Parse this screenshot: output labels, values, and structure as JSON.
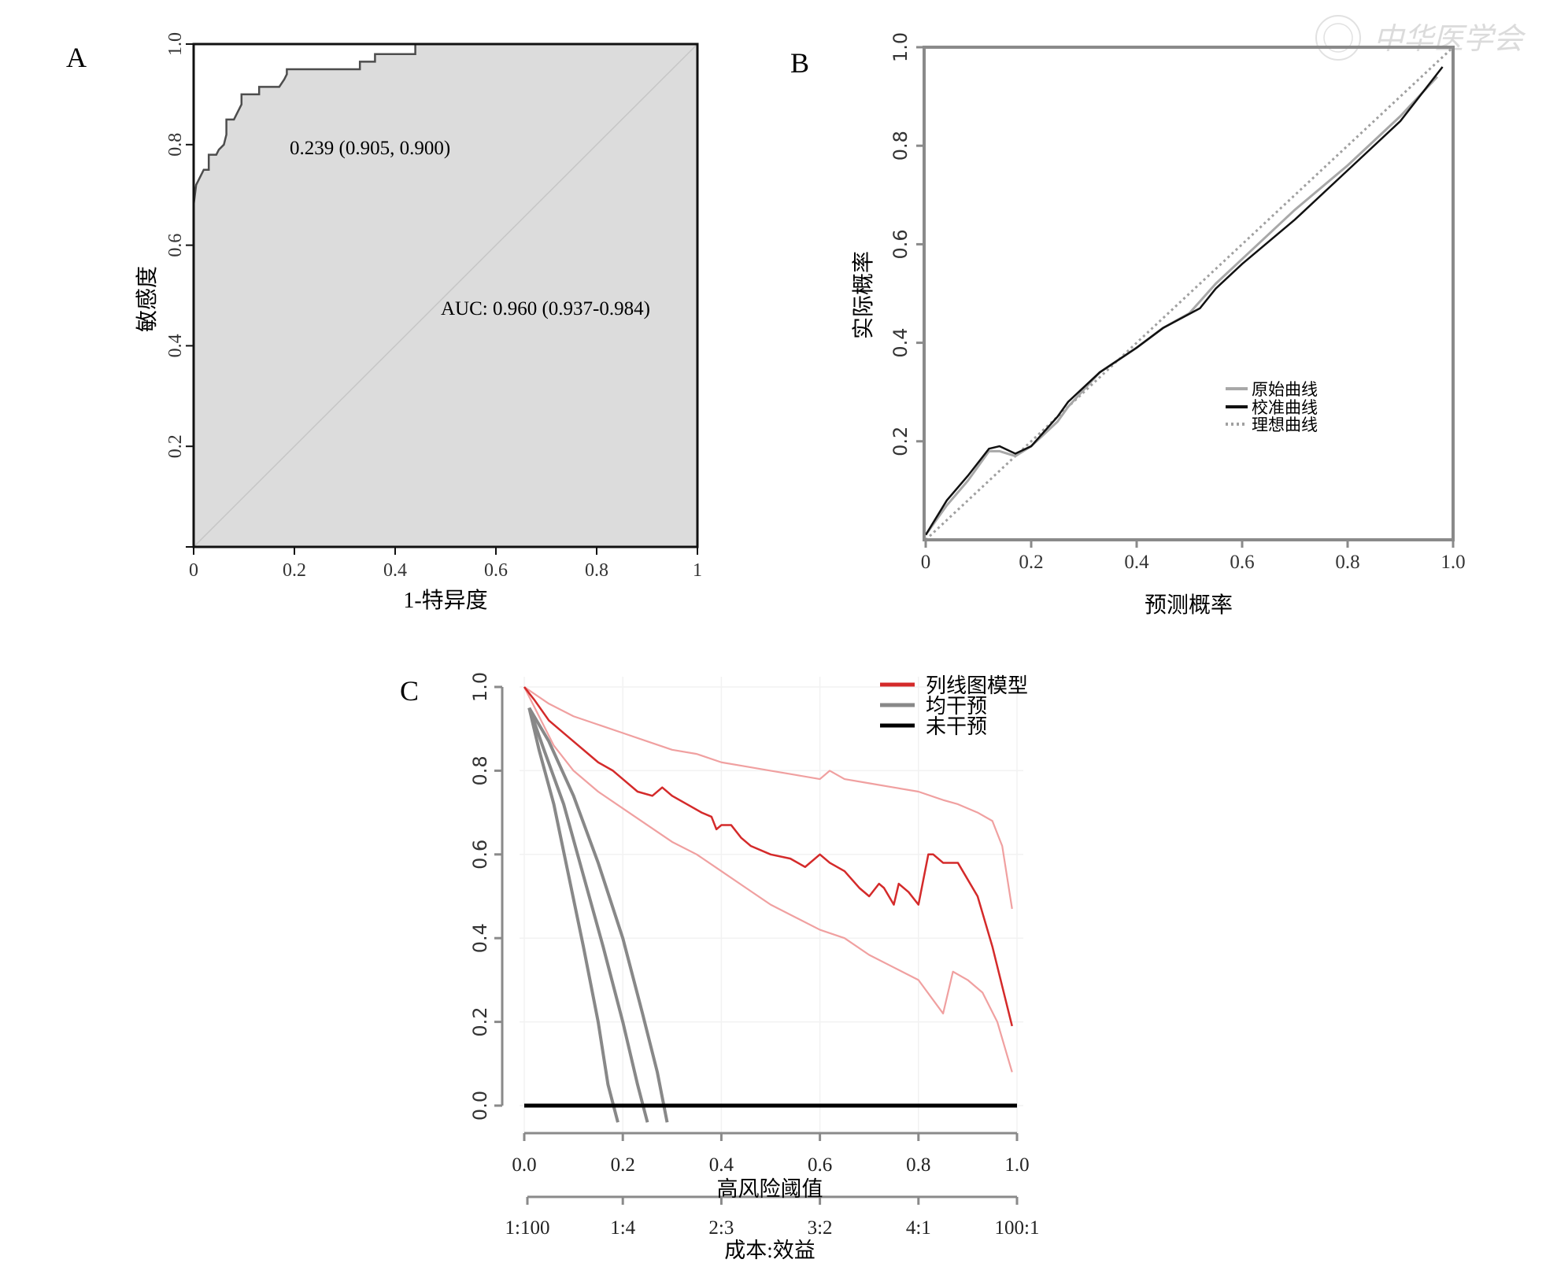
{
  "watermark": {
    "text": "中华医学会",
    "icon": "society-seal-icon"
  },
  "chart_data": [
    {
      "panel": "A",
      "type": "line",
      "title": "",
      "xlabel": "1-特异度",
      "ylabel": "敏感度",
      "xlim": [
        0,
        1
      ],
      "ylim": [
        0,
        1
      ],
      "xticks": [
        "0",
        "0.2",
        "0.4",
        "0.6",
        "0.8",
        "1"
      ],
      "yticks": [
        "0.2",
        "0.4",
        "0.6",
        "0.8",
        "1.0"
      ],
      "background": "#dcdcdc",
      "annotations": {
        "cutoff": "0.239 (0.905, 0.900)",
        "auc": "AUC: 0.960 (0.937-0.984)"
      },
      "series": [
        {
          "name": "ROC",
          "color": "#555555",
          "step": true,
          "x": [
            0,
            0,
            0.005,
            0.01,
            0.015,
            0.02,
            0.03,
            0.03,
            0.045,
            0.05,
            0.06,
            0.065,
            0.065,
            0.08,
            0.085,
            0.09,
            0.095,
            0.095,
            0.13,
            0.13,
            0.17,
            0.18,
            0.185,
            0.185,
            0.33,
            0.33,
            0.36,
            0.36,
            0.44,
            0.44,
            1
          ],
          "y": [
            0,
            0.68,
            0.72,
            0.73,
            0.74,
            0.75,
            0.75,
            0.78,
            0.78,
            0.79,
            0.8,
            0.82,
            0.85,
            0.85,
            0.86,
            0.87,
            0.88,
            0.9,
            0.9,
            0.915,
            0.915,
            0.93,
            0.94,
            0.95,
            0.95,
            0.965,
            0.965,
            0.98,
            0.98,
            1.0,
            1.0
          ]
        },
        {
          "name": "reference",
          "color": "#c8c8c8",
          "x": [
            0,
            1
          ],
          "y": [
            0,
            1
          ]
        }
      ]
    },
    {
      "panel": "B",
      "type": "line",
      "title": "",
      "xlabel": "预测概率",
      "ylabel": "实际概率",
      "xlim": [
        0,
        1
      ],
      "ylim": [
        0,
        1
      ],
      "xticks": [
        "0",
        "0.2",
        "0.4",
        "0.6",
        "0.8",
        "1.0"
      ],
      "yticks": [
        "0.2",
        "0.4",
        "0.6",
        "0.8",
        "1.0"
      ],
      "legend": {
        "position": "center",
        "entries": [
          "原始曲线",
          "校准曲线",
          "理想曲线"
        ]
      },
      "series": [
        {
          "name": "原始曲线",
          "color": "#a8a8a8",
          "dash": "solid",
          "x": [
            0,
            0.04,
            0.08,
            0.12,
            0.14,
            0.17,
            0.2,
            0.25,
            0.27,
            0.33,
            0.4,
            0.45,
            0.5,
            0.55,
            0.6,
            0.7,
            0.8,
            0.9,
            0.97
          ],
          "y": [
            0.01,
            0.07,
            0.12,
            0.18,
            0.18,
            0.17,
            0.19,
            0.24,
            0.27,
            0.34,
            0.39,
            0.43,
            0.46,
            0.52,
            0.57,
            0.67,
            0.76,
            0.86,
            0.94
          ]
        },
        {
          "name": "校准曲线",
          "color": "#111111",
          "dash": "solid",
          "x": [
            0,
            0.04,
            0.08,
            0.12,
            0.14,
            0.17,
            0.2,
            0.25,
            0.27,
            0.33,
            0.4,
            0.45,
            0.52,
            0.55,
            0.6,
            0.7,
            0.8,
            0.9,
            0.98
          ],
          "y": [
            0.01,
            0.08,
            0.13,
            0.185,
            0.19,
            0.175,
            0.19,
            0.25,
            0.28,
            0.34,
            0.39,
            0.43,
            0.47,
            0.51,
            0.56,
            0.65,
            0.75,
            0.85,
            0.96
          ]
        },
        {
          "name": "理想曲线",
          "color": "#a0a0a0",
          "dash": "dotted",
          "x": [
            0,
            1
          ],
          "y": [
            0,
            1
          ]
        }
      ]
    },
    {
      "panel": "C",
      "type": "line",
      "title": "",
      "xlabel": "高风险阈值",
      "ylabel": "",
      "secondary_xlabel": "成本:效益",
      "xlim": [
        0,
        1
      ],
      "ylim": [
        0,
        1
      ],
      "xticks": [
        "0.0",
        "0.2",
        "0.4",
        "0.6",
        "0.8",
        "1.0"
      ],
      "secondary_xticks": [
        "1:100",
        "1:4",
        "2:3",
        "3:2",
        "4:1",
        "100:1"
      ],
      "yticks": [
        "0.0",
        "0.2",
        "0.4",
        "0.6",
        "0.8",
        "1.0"
      ],
      "grid": true,
      "legend": {
        "position": "top-right",
        "entries": [
          "列线图模型",
          "均干预",
          "未干预"
        ]
      },
      "series": [
        {
          "name": "列线图模型",
          "color": "#d42a2a",
          "x": [
            0,
            0.02,
            0.05,
            0.08,
            0.1,
            0.13,
            0.15,
            0.18,
            0.2,
            0.23,
            0.26,
            0.28,
            0.3,
            0.33,
            0.36,
            0.38,
            0.39,
            0.4,
            0.42,
            0.44,
            0.46,
            0.5,
            0.54,
            0.57,
            0.6,
            0.62,
            0.65,
            0.68,
            0.7,
            0.72,
            0.73,
            0.75,
            0.76,
            0.78,
            0.8,
            0.82,
            0.83,
            0.85,
            0.88,
            0.92,
            0.95,
            0.99
          ],
          "y": [
            1.0,
            0.97,
            0.92,
            0.89,
            0.87,
            0.84,
            0.82,
            0.8,
            0.78,
            0.75,
            0.74,
            0.76,
            0.74,
            0.72,
            0.7,
            0.69,
            0.66,
            0.67,
            0.67,
            0.64,
            0.62,
            0.6,
            0.59,
            0.57,
            0.6,
            0.58,
            0.56,
            0.52,
            0.5,
            0.53,
            0.52,
            0.48,
            0.53,
            0.51,
            0.48,
            0.6,
            0.6,
            0.58,
            0.58,
            0.5,
            0.38,
            0.19
          ]
        },
        {
          "name": "列线图模型-upper",
          "color": "#f0a0a0",
          "x": [
            0,
            0.05,
            0.1,
            0.15,
            0.2,
            0.25,
            0.3,
            0.35,
            0.4,
            0.45,
            0.5,
            0.55,
            0.6,
            0.62,
            0.65,
            0.7,
            0.75,
            0.8,
            0.85,
            0.88,
            0.92,
            0.95,
            0.97,
            0.99
          ],
          "y": [
            1.0,
            0.96,
            0.93,
            0.91,
            0.89,
            0.87,
            0.85,
            0.84,
            0.82,
            0.81,
            0.8,
            0.79,
            0.78,
            0.8,
            0.78,
            0.77,
            0.76,
            0.75,
            0.73,
            0.72,
            0.7,
            0.68,
            0.62,
            0.47
          ]
        },
        {
          "name": "列线图模型-lower",
          "color": "#f0a0a0",
          "x": [
            0,
            0.03,
            0.06,
            0.1,
            0.15,
            0.2,
            0.25,
            0.3,
            0.35,
            0.4,
            0.45,
            0.5,
            0.55,
            0.6,
            0.65,
            0.7,
            0.75,
            0.8,
            0.85,
            0.87,
            0.9,
            0.93,
            0.96,
            0.98,
            0.99
          ],
          "y": [
            1.0,
            0.93,
            0.86,
            0.8,
            0.75,
            0.71,
            0.67,
            0.63,
            0.6,
            0.56,
            0.52,
            0.48,
            0.45,
            0.42,
            0.4,
            0.36,
            0.33,
            0.3,
            0.22,
            0.32,
            0.3,
            0.27,
            0.2,
            0.12,
            0.08
          ]
        },
        {
          "name": "均干预",
          "color": "#888888",
          "x": [
            0.01,
            0.03,
            0.06,
            0.09,
            0.12,
            0.15,
            0.17,
            0.19
          ],
          "y": [
            0.95,
            0.85,
            0.72,
            0.55,
            0.38,
            0.2,
            0.05,
            -0.04
          ]
        },
        {
          "name": "均干预-upper",
          "color": "#888888",
          "x": [
            0.01,
            0.04,
            0.08,
            0.12,
            0.16,
            0.2,
            0.23,
            0.25
          ],
          "y": [
            0.95,
            0.85,
            0.72,
            0.55,
            0.38,
            0.2,
            0.05,
            -0.04
          ]
        },
        {
          "name": "均干预-lower",
          "color": "#888888",
          "x": [
            0.01,
            0.05,
            0.1,
            0.15,
            0.2,
            0.24,
            0.27,
            0.29
          ],
          "y": [
            0.95,
            0.87,
            0.74,
            0.58,
            0.4,
            0.22,
            0.08,
            -0.04
          ]
        },
        {
          "name": "未干预",
          "color": "#000000",
          "x": [
            0,
            1
          ],
          "y": [
            0,
            0
          ]
        }
      ]
    }
  ]
}
